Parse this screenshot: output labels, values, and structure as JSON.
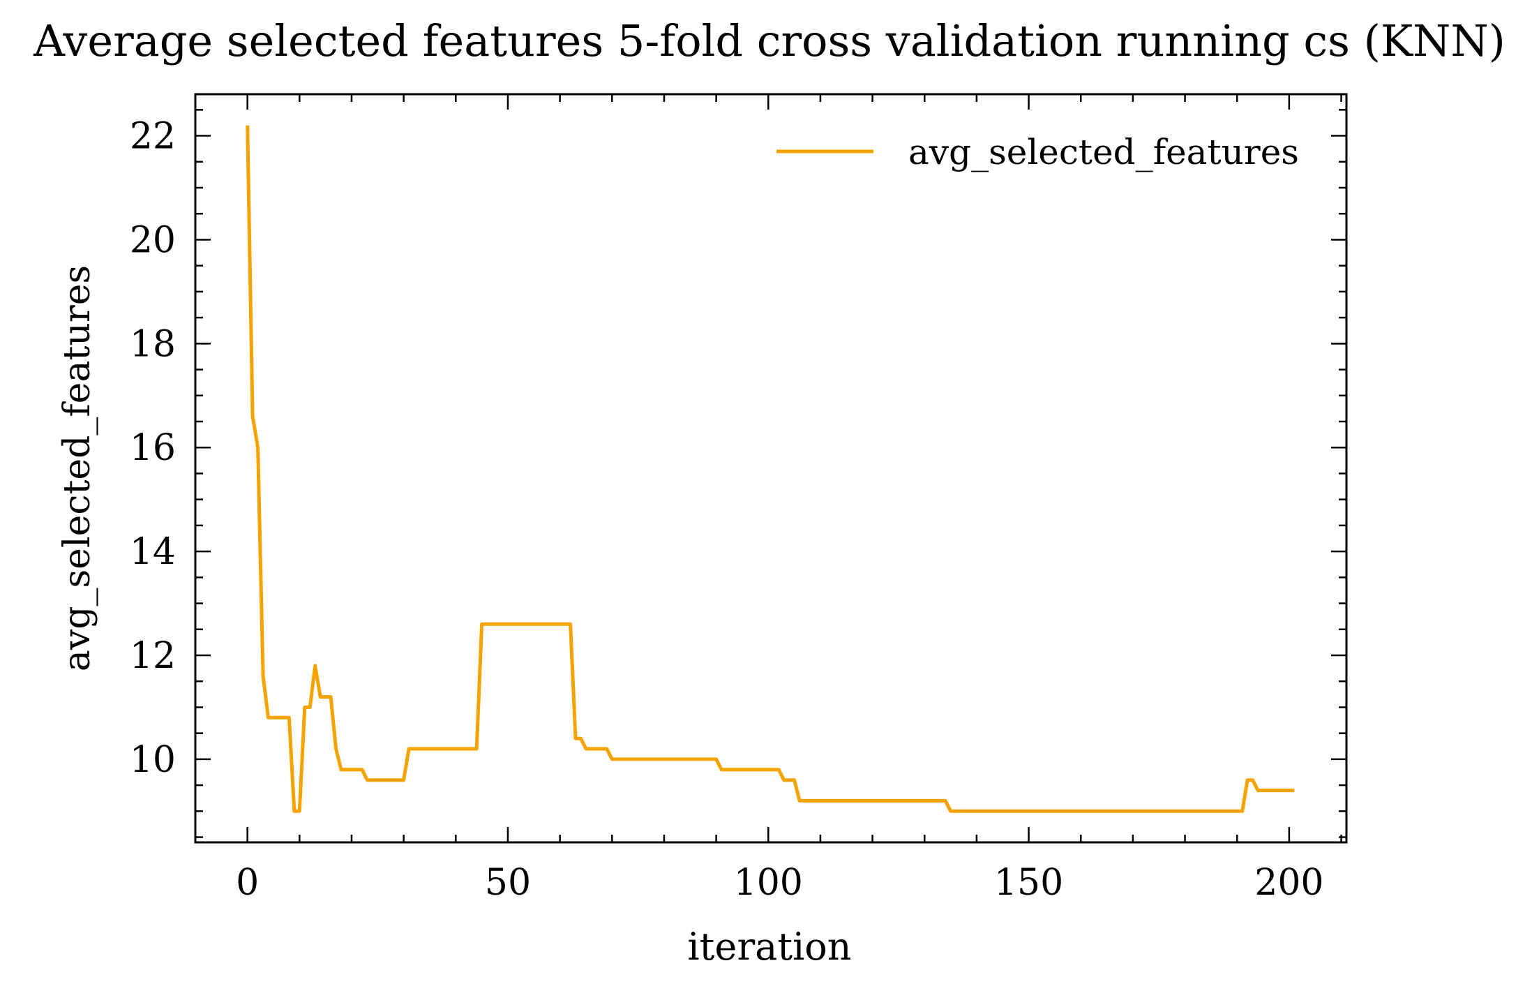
{
  "chart_data": {
    "type": "line",
    "title": "Average selected features 5-fold cross validation running cs (KNN)",
    "xlabel": "iteration",
    "ylabel": "avg_selected_features",
    "xlim": [
      -10,
      211
    ],
    "ylim": [
      8.4,
      22.8
    ],
    "x_ticks": [
      0,
      50,
      100,
      150,
      200
    ],
    "x_tick_labels": [
      "0",
      "50",
      "100",
      "150",
      "200"
    ],
    "x_minor_step": 10,
    "y_ticks": [
      10,
      12,
      14,
      16,
      18,
      20,
      22
    ],
    "y_tick_labels": [
      "10",
      "12",
      "14",
      "16",
      "18",
      "20",
      "22"
    ],
    "y_minor_step": 0.5,
    "grid": false,
    "legend": {
      "position": "upper-right",
      "entries": [
        "avg_selected_features"
      ]
    },
    "colors": {
      "line": "#f5a300",
      "axes": "#000000"
    },
    "series": [
      {
        "name": "avg_selected_features",
        "x": [
          0,
          1,
          2,
          3,
          4,
          5,
          6,
          7,
          8,
          9,
          10,
          11,
          12,
          13,
          14,
          15,
          16,
          17,
          18,
          19,
          20,
          21,
          22,
          23,
          30,
          31,
          32,
          44,
          45,
          62,
          63,
          64,
          65,
          69,
          70,
          90,
          91,
          102,
          103,
          105,
          106,
          134,
          135,
          191,
          192,
          193,
          194,
          201
        ],
        "y": [
          22.2,
          16.6,
          16.0,
          11.6,
          10.8,
          10.8,
          10.8,
          10.8,
          10.8,
          9.0,
          9.0,
          11.0,
          11.0,
          11.8,
          11.2,
          11.2,
          11.2,
          10.2,
          9.8,
          9.8,
          9.8,
          9.8,
          9.8,
          9.6,
          9.6,
          10.2,
          10.2,
          10.2,
          12.6,
          12.6,
          10.4,
          10.4,
          10.2,
          10.2,
          10.0,
          10.0,
          9.8,
          9.8,
          9.6,
          9.6,
          9.2,
          9.2,
          9.0,
          9.0,
          9.6,
          9.6,
          9.4,
          9.4
        ]
      }
    ]
  }
}
